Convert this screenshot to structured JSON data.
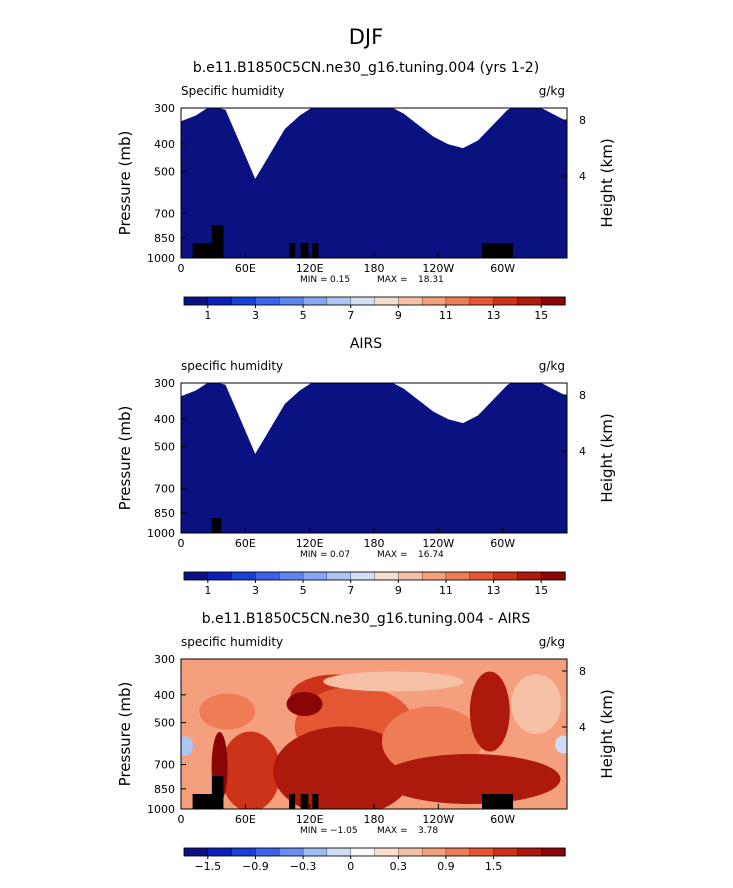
{
  "figure_title": "DJF",
  "chart_data": [
    {
      "type": "heatmap",
      "subtype": "filled-contour-cross-section",
      "title": "b.e11.B1850C5CN.ne30_g16.tuning.004 (yrs 1-2)",
      "variable": "Specific humidity",
      "units": "g/kg",
      "ylabel_left": "Pressure (mb)",
      "ylabel_right": "Height (km)",
      "y_ticks": [
        "300",
        "400",
        "500",
        "700",
        "850",
        "1000"
      ],
      "y_right_ticks": [
        "8",
        "4"
      ],
      "x_ticks": [
        "0",
        "60E",
        "120E",
        "180",
        "120W",
        "60W"
      ],
      "stats": {
        "min_label": "MIN =",
        "min": "0.15",
        "max_label": "MAX =",
        "max": "18.31"
      },
      "colorbar_labels": [
        "1",
        "3",
        "5",
        "7",
        "9",
        "11",
        "13",
        "15"
      ],
      "colorbar_colors": [
        "#0a1180",
        "#0c1fb8",
        "#1a40d8",
        "#3d62e8",
        "#5f85f0",
        "#87a7f2",
        "#adc6f4",
        "#d3def2",
        "#f2ddd2",
        "#f6c0a6",
        "#f4a07e",
        "#ee7c54",
        "#e55633",
        "#cc3318",
        "#ad1a0c",
        "#8a0505"
      ]
    },
    {
      "type": "heatmap",
      "subtype": "filled-contour-cross-section",
      "title": "AIRS",
      "variable": "specific humidity",
      "units": "g/kg",
      "ylabel_left": "Pressure (mb)",
      "ylabel_right": "Height (km)",
      "y_ticks": [
        "300",
        "400",
        "500",
        "700",
        "850",
        "1000"
      ],
      "y_right_ticks": [
        "8",
        "4"
      ],
      "x_ticks": [
        "0",
        "60E",
        "120E",
        "180",
        "120W",
        "60W"
      ],
      "stats": {
        "min_label": "MIN =",
        "min": "0.07",
        "max_label": "MAX =",
        "max": "16.74"
      },
      "colorbar_labels": [
        "1",
        "3",
        "5",
        "7",
        "9",
        "11",
        "13",
        "15"
      ],
      "colorbar_colors": [
        "#0a1180",
        "#0c1fb8",
        "#1a40d8",
        "#3d62e8",
        "#5f85f0",
        "#87a7f2",
        "#adc6f4",
        "#d3def2",
        "#f2ddd2",
        "#f6c0a6",
        "#f4a07e",
        "#ee7c54",
        "#e55633",
        "#cc3318",
        "#ad1a0c",
        "#8a0505"
      ]
    },
    {
      "type": "heatmap",
      "subtype": "filled-contour-cross-section",
      "title": "b.e11.B1850C5CN.ne30_g16.tuning.004 - AIRS",
      "variable": "specific humidity",
      "units": "g/kg",
      "ylabel_left": "Pressure (mb)",
      "ylabel_right": "Height (km)",
      "y_ticks": [
        "300",
        "400",
        "500",
        "700",
        "850",
        "1000"
      ],
      "y_right_ticks": [
        "8",
        "4"
      ],
      "x_ticks": [
        "0",
        "60E",
        "120E",
        "180",
        "120W",
        "60W"
      ],
      "stats": {
        "min_label": "MIN =",
        "min": "−1.05",
        "max_label": "MAX =",
        "max": "3.78"
      },
      "colorbar_labels": [
        "−1.5",
        "−0.9",
        "−0.3",
        "0",
        "0.3",
        "0.9",
        "1.5"
      ],
      "colorbar_colors": [
        "#0a1180",
        "#0c1fb8",
        "#1a40d8",
        "#3d62e8",
        "#6b8ef0",
        "#9fbcf4",
        "#cfdcf4",
        "#f8f8f8",
        "#fbe0d0",
        "#f6c0a6",
        "#f4a07e",
        "#ee7c54",
        "#e55633",
        "#cc3318",
        "#ad1a0c",
        "#8a0505"
      ]
    }
  ]
}
